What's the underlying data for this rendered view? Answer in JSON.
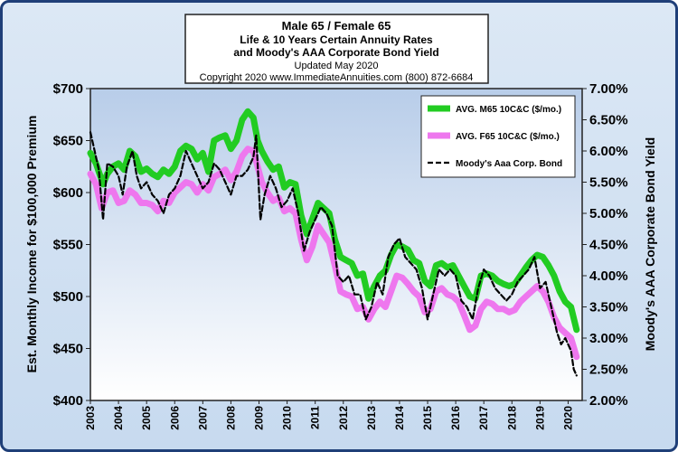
{
  "chart_data": {
    "type": "line",
    "title_lines": [
      "Male 65 / Female 65",
      "Life & 10 Years Certain Annuity Rates",
      "and Moody's AAA Corporate Bond Yield",
      "Updated May 2020",
      "Copyright 2020   www.ImmediateAnnuities.com   (800) 872-6684"
    ],
    "ylabel_left": "Est. Monthly Income for $100,000 Premium",
    "ylabel_right": "Moody's AAA Corporate Bond Yield",
    "y_left_range": [
      400,
      700
    ],
    "y_left_ticks": [
      "$400",
      "$450",
      "$500",
      "$550",
      "$600",
      "$650",
      "$700"
    ],
    "y_right_range": [
      2.0,
      7.0
    ],
    "y_right_ticks": [
      "2.00%",
      "2.50%",
      "3.00%",
      "3.50%",
      "4.00%",
      "4.50%",
      "5.00%",
      "5.50%",
      "6.00%",
      "6.50%",
      "7.00%"
    ],
    "x_range": [
      2003,
      2020.5
    ],
    "x_ticks": [
      "2003",
      "2004",
      "2005",
      "2006",
      "2007",
      "2008",
      "2009",
      "2010",
      "2011",
      "2012",
      "2013",
      "2014",
      "2015",
      "2016",
      "2017",
      "2018",
      "2019",
      "2020"
    ],
    "legend_position": "top-right",
    "colors": {
      "male": "#22cc22",
      "female": "#ee77ee",
      "bond": "#000000",
      "plot_top": "#b8cde9",
      "plot_bottom": "#ffffff",
      "frame": "#1f3f78"
    },
    "series": [
      {
        "name": "AVG. M65 10C&C ($/mo.)",
        "axis": "left",
        "points": [
          [
            2003.0,
            638
          ],
          [
            2003.2,
            628
          ],
          [
            2003.45,
            608
          ],
          [
            2003.6,
            618
          ],
          [
            2003.8,
            625
          ],
          [
            2004.0,
            628
          ],
          [
            2004.2,
            622
          ],
          [
            2004.4,
            640
          ],
          [
            2004.6,
            635
          ],
          [
            2004.8,
            620
          ],
          [
            2005.0,
            623
          ],
          [
            2005.2,
            618
          ],
          [
            2005.4,
            615
          ],
          [
            2005.6,
            622
          ],
          [
            2005.8,
            618
          ],
          [
            2006.0,
            625
          ],
          [
            2006.2,
            640
          ],
          [
            2006.4,
            645
          ],
          [
            2006.6,
            642
          ],
          [
            2006.8,
            632
          ],
          [
            2007.0,
            638
          ],
          [
            2007.2,
            620
          ],
          [
            2007.4,
            650
          ],
          [
            2007.6,
            653
          ],
          [
            2007.8,
            655
          ],
          [
            2008.0,
            642
          ],
          [
            2008.2,
            650
          ],
          [
            2008.4,
            670
          ],
          [
            2008.6,
            678
          ],
          [
            2008.8,
            672
          ],
          [
            2008.95,
            650
          ],
          [
            2009.1,
            640
          ],
          [
            2009.3,
            630
          ],
          [
            2009.5,
            622
          ],
          [
            2009.7,
            625
          ],
          [
            2009.9,
            605
          ],
          [
            2010.1,
            610
          ],
          [
            2010.3,
            608
          ],
          [
            2010.5,
            578
          ],
          [
            2010.7,
            560
          ],
          [
            2010.9,
            575
          ],
          [
            2011.1,
            590
          ],
          [
            2011.3,
            585
          ],
          [
            2011.5,
            580
          ],
          [
            2011.7,
            555
          ],
          [
            2011.9,
            538
          ],
          [
            2012.1,
            535
          ],
          [
            2012.3,
            532
          ],
          [
            2012.5,
            520
          ],
          [
            2012.7,
            522
          ],
          [
            2012.9,
            498
          ],
          [
            2013.1,
            510
          ],
          [
            2013.3,
            520
          ],
          [
            2013.5,
            525
          ],
          [
            2013.7,
            540
          ],
          [
            2013.9,
            550
          ],
          [
            2014.1,
            548
          ],
          [
            2014.3,
            545
          ],
          [
            2014.5,
            535
          ],
          [
            2014.7,
            532
          ],
          [
            2014.9,
            515
          ],
          [
            2015.1,
            510
          ],
          [
            2015.3,
            530
          ],
          [
            2015.5,
            532
          ],
          [
            2015.7,
            528
          ],
          [
            2015.9,
            530
          ],
          [
            2016.1,
            520
          ],
          [
            2016.3,
            510
          ],
          [
            2016.5,
            500
          ],
          [
            2016.7,
            498
          ],
          [
            2016.9,
            520
          ],
          [
            2017.1,
            522
          ],
          [
            2017.3,
            520
          ],
          [
            2017.5,
            515
          ],
          [
            2017.7,
            512
          ],
          [
            2017.9,
            510
          ],
          [
            2018.1,
            512
          ],
          [
            2018.3,
            520
          ],
          [
            2018.5,
            528
          ],
          [
            2018.7,
            535
          ],
          [
            2018.9,
            540
          ],
          [
            2019.1,
            538
          ],
          [
            2019.3,
            530
          ],
          [
            2019.5,
            520
          ],
          [
            2019.7,
            505
          ],
          [
            2019.9,
            495
          ],
          [
            2020.1,
            490
          ],
          [
            2020.3,
            468
          ]
        ]
      },
      {
        "name": "AVG. F65 10C&C ($/mo.)",
        "axis": "left",
        "points": [
          [
            2003.0,
            618
          ],
          [
            2003.2,
            608
          ],
          [
            2003.4,
            585
          ],
          [
            2003.6,
            600
          ],
          [
            2003.8,
            602
          ],
          [
            2004.0,
            590
          ],
          [
            2004.2,
            592
          ],
          [
            2004.4,
            602
          ],
          [
            2004.6,
            598
          ],
          [
            2004.8,
            590
          ],
          [
            2005.0,
            590
          ],
          [
            2005.2,
            588
          ],
          [
            2005.4,
            582
          ],
          [
            2005.6,
            592
          ],
          [
            2005.8,
            590
          ],
          [
            2006.0,
            600
          ],
          [
            2006.2,
            605
          ],
          [
            2006.4,
            610
          ],
          [
            2006.6,
            608
          ],
          [
            2006.8,
            600
          ],
          [
            2007.0,
            608
          ],
          [
            2007.2,
            602
          ],
          [
            2007.4,
            615
          ],
          [
            2007.6,
            618
          ],
          [
            2007.8,
            622
          ],
          [
            2008.0,
            612
          ],
          [
            2008.2,
            620
          ],
          [
            2008.4,
            635
          ],
          [
            2008.6,
            642
          ],
          [
            2008.8,
            640
          ],
          [
            2008.95,
            625
          ],
          [
            2009.1,
            610
          ],
          [
            2009.3,
            600
          ],
          [
            2009.5,
            592
          ],
          [
            2009.7,
            595
          ],
          [
            2009.9,
            582
          ],
          [
            2010.1,
            585
          ],
          [
            2010.3,
            580
          ],
          [
            2010.5,
            555
          ],
          [
            2010.7,
            535
          ],
          [
            2010.9,
            548
          ],
          [
            2011.1,
            568
          ],
          [
            2011.3,
            560
          ],
          [
            2011.5,
            552
          ],
          [
            2011.7,
            530
          ],
          [
            2011.9,
            505
          ],
          [
            2012.1,
            502
          ],
          [
            2012.3,
            500
          ],
          [
            2012.5,
            488
          ],
          [
            2012.7,
            490
          ],
          [
            2012.9,
            478
          ],
          [
            2013.1,
            488
          ],
          [
            2013.3,
            495
          ],
          [
            2013.5,
            490
          ],
          [
            2013.7,
            505
          ],
          [
            2013.9,
            520
          ],
          [
            2014.1,
            518
          ],
          [
            2014.3,
            512
          ],
          [
            2014.5,
            505
          ],
          [
            2014.7,
            500
          ],
          [
            2014.9,
            485
          ],
          [
            2015.1,
            488
          ],
          [
            2015.3,
            505
          ],
          [
            2015.5,
            508
          ],
          [
            2015.7,
            502
          ],
          [
            2015.9,
            500
          ],
          [
            2016.1,
            495
          ],
          [
            2016.3,
            482
          ],
          [
            2016.5,
            468
          ],
          [
            2016.7,
            472
          ],
          [
            2016.9,
            488
          ],
          [
            2017.1,
            495
          ],
          [
            2017.3,
            493
          ],
          [
            2017.5,
            488
          ],
          [
            2017.7,
            488
          ],
          [
            2017.9,
            485
          ],
          [
            2018.1,
            487
          ],
          [
            2018.3,
            495
          ],
          [
            2018.5,
            500
          ],
          [
            2018.7,
            505
          ],
          [
            2018.9,
            510
          ],
          [
            2019.1,
            505
          ],
          [
            2019.3,
            495
          ],
          [
            2019.5,
            480
          ],
          [
            2019.7,
            470
          ],
          [
            2019.9,
            465
          ],
          [
            2020.1,
            460
          ],
          [
            2020.3,
            442
          ]
        ]
      },
      {
        "name": "Moody's Aaa Corp. Bond",
        "axis": "right",
        "points": [
          [
            2003.0,
            6.3
          ],
          [
            2003.15,
            6.0
          ],
          [
            2003.3,
            5.7
          ],
          [
            2003.45,
            4.9
          ],
          [
            2003.6,
            5.8
          ],
          [
            2003.8,
            5.75
          ],
          [
            2004.0,
            5.6
          ],
          [
            2004.15,
            5.3
          ],
          [
            2004.3,
            5.75
          ],
          [
            2004.5,
            6.0
          ],
          [
            2004.65,
            5.6
          ],
          [
            2004.8,
            5.4
          ],
          [
            2005.0,
            5.5
          ],
          [
            2005.2,
            5.3
          ],
          [
            2005.4,
            5.2
          ],
          [
            2005.6,
            5.0
          ],
          [
            2005.8,
            5.3
          ],
          [
            2006.0,
            5.4
          ],
          [
            2006.2,
            5.6
          ],
          [
            2006.4,
            6.0
          ],
          [
            2006.6,
            5.8
          ],
          [
            2006.8,
            5.6
          ],
          [
            2007.0,
            5.4
          ],
          [
            2007.2,
            5.5
          ],
          [
            2007.4,
            5.8
          ],
          [
            2007.6,
            5.7
          ],
          [
            2007.8,
            5.5
          ],
          [
            2008.0,
            5.3
          ],
          [
            2008.2,
            5.6
          ],
          [
            2008.4,
            5.6
          ],
          [
            2008.6,
            5.7
          ],
          [
            2008.8,
            5.9
          ],
          [
            2008.9,
            6.25
          ],
          [
            2009.05,
            4.9
          ],
          [
            2009.2,
            5.3
          ],
          [
            2009.4,
            5.6
          ],
          [
            2009.6,
            5.4
          ],
          [
            2009.8,
            5.1
          ],
          [
            2010.0,
            5.2
          ],
          [
            2010.2,
            5.4
          ],
          [
            2010.4,
            5.0
          ],
          [
            2010.6,
            4.4
          ],
          [
            2010.8,
            4.7
          ],
          [
            2011.0,
            4.9
          ],
          [
            2011.2,
            5.1
          ],
          [
            2011.4,
            5.0
          ],
          [
            2011.6,
            4.8
          ],
          [
            2011.8,
            4.0
          ],
          [
            2012.0,
            3.9
          ],
          [
            2012.2,
            4.0
          ],
          [
            2012.4,
            3.7
          ],
          [
            2012.6,
            3.7
          ],
          [
            2012.8,
            3.3
          ],
          [
            2013.0,
            3.5
          ],
          [
            2013.2,
            3.9
          ],
          [
            2013.4,
            3.7
          ],
          [
            2013.6,
            4.3
          ],
          [
            2013.8,
            4.5
          ],
          [
            2014.0,
            4.6
          ],
          [
            2014.2,
            4.3
          ],
          [
            2014.4,
            4.2
          ],
          [
            2014.6,
            4.1
          ],
          [
            2014.8,
            3.8
          ],
          [
            2015.0,
            3.3
          ],
          [
            2015.2,
            3.7
          ],
          [
            2015.4,
            4.1
          ],
          [
            2015.6,
            4.0
          ],
          [
            2015.8,
            4.1
          ],
          [
            2016.0,
            4.0
          ],
          [
            2016.2,
            3.6
          ],
          [
            2016.4,
            3.5
          ],
          [
            2016.6,
            3.3
          ],
          [
            2016.8,
            3.8
          ],
          [
            2017.0,
            4.1
          ],
          [
            2017.2,
            4.0
          ],
          [
            2017.4,
            3.8
          ],
          [
            2017.6,
            3.7
          ],
          [
            2017.8,
            3.6
          ],
          [
            2018.0,
            3.7
          ],
          [
            2018.2,
            3.9
          ],
          [
            2018.4,
            4.0
          ],
          [
            2018.6,
            4.1
          ],
          [
            2018.8,
            4.3
          ],
          [
            2019.0,
            3.8
          ],
          [
            2019.2,
            3.9
          ],
          [
            2019.4,
            3.5
          ],
          [
            2019.6,
            3.1
          ],
          [
            2019.75,
            2.9
          ],
          [
            2019.9,
            3.0
          ],
          [
            2020.1,
            2.8
          ],
          [
            2020.2,
            2.5
          ],
          [
            2020.3,
            2.4
          ]
        ]
      }
    ]
  }
}
